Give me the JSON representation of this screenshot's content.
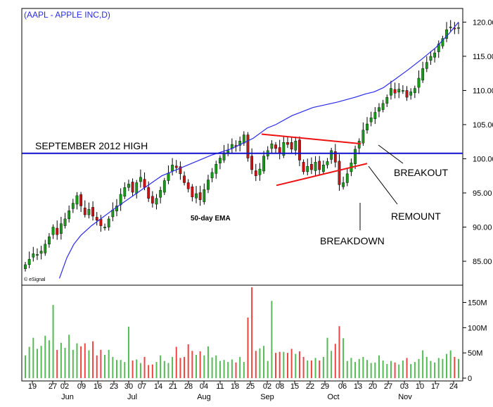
{
  "chart_data": {
    "type": "candlestick",
    "title": "(AAPL - APPLE INC,D)",
    "watermark": "© eSignal",
    "y_ticks": [
      "120.00",
      "115.00",
      "110.00",
      "105.00",
      "100.00",
      "95.00",
      "90.00",
      "85.00"
    ],
    "y_range": [
      81.5,
      122
    ],
    "volume_ticks": [
      "150M",
      "100M",
      "50M",
      "0"
    ],
    "volume_range": [
      0,
      180
    ],
    "day_labels": [
      "19",
      "27",
      "02",
      "09",
      "16",
      "23",
      "30",
      "07",
      "14",
      "21",
      "28",
      "04",
      "11",
      "18",
      "25",
      "02",
      "08",
      "15",
      "22",
      "29",
      "06",
      "13",
      "20",
      "27",
      "03",
      "10",
      "17",
      "24"
    ],
    "month_labels": [
      "Jun",
      "Jul",
      "Aug",
      "Sep",
      "Oct",
      "Nov"
    ],
    "annotations": {
      "sept_high": "SEPTEMBER 2012 HIGH",
      "ema": "50-day EMA",
      "breakout": "BREAKOUT",
      "remount": "REMOUNT",
      "breakdown": "BREAKDOWN"
    },
    "sept_high_level": 100.8,
    "triangle_upper": [
      103.6,
      102.2
    ],
    "triangle_lower": [
      96.1,
      99.3
    ],
    "colors": {
      "up": "#1a9a1a",
      "down": "#cc1111",
      "wick": "#000000",
      "ema": "#2a2aee",
      "level": "#1111cc",
      "triangle": "#ee1111",
      "title": "#2a2aee",
      "volume_up": "#55bb55",
      "volume_down": "#ee4444"
    },
    "close": [
      84.5,
      85.3,
      86.1,
      86.0,
      86.5,
      87.5,
      88.6,
      90.0,
      88.9,
      90.5,
      91.2,
      92.4,
      93.5,
      94.6,
      93.1,
      91.8,
      92.6,
      91.6,
      91.0,
      90.2,
      90.0,
      91.2,
      92.5,
      93.1,
      94.8,
      95.8,
      96.3,
      95.1,
      96.5,
      97.3,
      95.8,
      94.2,
      93.5,
      94.2,
      95.4,
      96.8,
      97.9,
      99.1,
      98.7,
      97.8,
      96.5,
      95.6,
      94.4,
      94.9,
      94.0,
      95.5,
      96.9,
      98.0,
      99.2,
      100.1,
      100.9,
      101.2,
      102.1,
      101.8,
      102.6,
      103.5,
      100.1,
      98.4,
      97.5,
      98.5,
      100.4,
      101.2,
      102.2,
      101.5,
      100.8,
      102.4,
      102.1,
      101.4,
      102.6,
      99.8,
      98.1,
      98.9,
      98.4,
      99.5,
      98.4,
      99.1,
      99.6,
      101.2,
      99.5,
      96.2,
      96.5,
      97.8,
      99.4,
      101.4,
      102.6,
      104.2,
      105.1,
      106.0,
      106.8,
      107.5,
      108.1,
      109.0,
      110.3,
      109.6,
      110.2,
      110.0,
      109.0,
      109.8,
      110.3,
      111.8,
      113.2,
      114.1,
      115.0,
      115.5,
      116.8,
      117.6,
      118.9,
      119.3,
      119.0,
      119.2
    ],
    "volume": [
      45,
      62,
      80,
      58,
      64,
      84,
      75,
      145,
      56,
      70,
      60,
      86,
      56,
      69,
      63,
      69,
      55,
      73,
      45,
      56,
      46,
      56,
      42,
      36,
      36,
      32,
      102,
      35,
      37,
      30,
      42,
      26,
      27,
      32,
      45,
      34,
      30,
      42,
      62,
      40,
      42,
      67,
      54,
      46,
      53,
      45,
      63,
      41,
      45,
      34,
      36,
      32,
      37,
      31,
      42,
      32,
      120,
      180,
      54,
      59,
      64,
      34,
      153,
      50,
      52,
      52,
      50,
      58,
      48,
      53,
      42,
      35,
      35,
      40,
      35,
      42,
      80,
      54,
      68,
      103,
      79,
      34,
      40,
      32,
      38,
      42,
      36,
      30,
      31,
      45,
      35,
      28,
      34,
      31,
      27,
      35,
      40,
      28,
      32,
      38,
      55,
      42,
      34,
      31,
      40,
      38,
      48,
      55,
      42,
      38
    ],
    "ema_path": [
      [
        84.5,
        82.5
      ],
      [
        95,
        85.5
      ],
      [
        105,
        87.5
      ],
      [
        115,
        88.8
      ],
      [
        130,
        90.2
      ],
      [
        160,
        92.5
      ],
      [
        195,
        95.0
      ],
      [
        230,
        97.5
      ],
      [
        265,
        99.0
      ],
      [
        300,
        100.5
      ],
      [
        330,
        101.5
      ],
      [
        360,
        103.0
      ],
      [
        380,
        104.5
      ],
      [
        392,
        105.0
      ],
      [
        415,
        106.3
      ],
      [
        445,
        107.5
      ],
      [
        480,
        108.3
      ],
      [
        505,
        109.0
      ],
      [
        520,
        109.5
      ],
      [
        532,
        109.8
      ],
      [
        545,
        110.4
      ],
      [
        560,
        111.5
      ],
      [
        580,
        113.0
      ],
      [
        600,
        114.6
      ],
      [
        620,
        116.3
      ],
      [
        640,
        118.5
      ],
      [
        652,
        120.0
      ]
    ]
  }
}
